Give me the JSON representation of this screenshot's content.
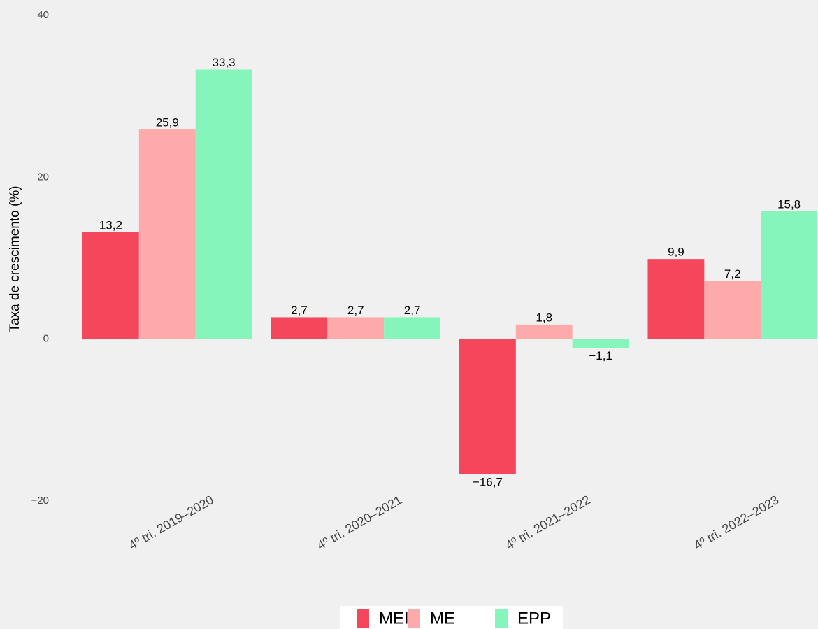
{
  "chart_data": {
    "type": "bar",
    "y_label": "Taxa de crescimento (%)",
    "categories": [
      "4º tri. 2019–2020",
      "4º tri. 2020–2021",
      "4º tri. 2021–2022",
      "4º tri. 2022–2023"
    ],
    "series": [
      {
        "name": "MEI",
        "color": "#f5475c",
        "values": [
          13.2,
          2.7,
          -16.7,
          9.9
        ],
        "value_labels": [
          "13,2",
          "2,7",
          "−16,7",
          "9,9"
        ]
      },
      {
        "name": "ME",
        "color": "#fea9aa",
        "values": [
          25.9,
          2.7,
          1.8,
          7.2
        ],
        "value_labels": [
          "25,9",
          "2,7",
          "1,8",
          "7,2"
        ]
      },
      {
        "name": "EPP",
        "color": "#86f5bb",
        "values": [
          33.3,
          2.7,
          -1.1,
          15.8
        ],
        "value_labels": [
          "33,3",
          "2,7",
          "−1,1",
          "15,8"
        ]
      }
    ],
    "ylim": [
      -20,
      40
    ],
    "yticks": [
      {
        "value": -20,
        "label": "−20"
      },
      0,
      20,
      40
    ],
    "legend": "bottom"
  }
}
